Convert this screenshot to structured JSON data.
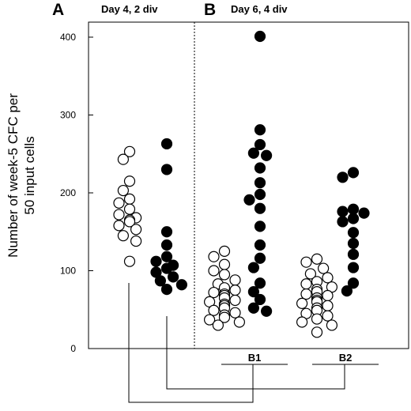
{
  "chart_data": {
    "type": "scatter",
    "panels": [
      {
        "letter": "A",
        "title": "Day 4, 2 div"
      },
      {
        "letter": "B",
        "title": "Day 6, 4 div"
      }
    ],
    "ylabel_line1": "Number of week-5 CFC per",
    "ylabel_line2": "50  input cells",
    "ylim": [
      0,
      420
    ],
    "yticks": [
      0,
      100,
      200,
      300,
      400
    ],
    "groups": [
      "B1",
      "B2"
    ],
    "series": [
      {
        "fill": "#ffffff",
        "panel": "A",
        "values": [
          253,
          243,
          215,
          203,
          192,
          187,
          179,
          172,
          168,
          165,
          163,
          158,
          153,
          145,
          138,
          112
        ]
      },
      {
        "fill": "#000000",
        "panel": "A",
        "values": [
          263,
          230,
          150,
          133,
          118,
          112,
          107,
          103,
          98,
          92,
          87,
          82,
          76
        ]
      },
      {
        "fill": "#ffffff",
        "panel": "B1",
        "values": [
          125,
          118,
          108,
          100,
          95,
          88,
          83,
          78,
          75,
          72,
          70,
          68,
          65,
          62,
          60,
          57,
          55,
          52,
          49,
          46,
          43,
          40,
          37,
          34,
          30
        ]
      },
      {
        "fill": "#000000",
        "panel": "B1",
        "values": [
          401,
          281,
          262,
          251,
          248,
          232,
          213,
          198,
          191,
          180,
          157,
          133,
          116,
          104,
          84,
          73,
          63,
          52,
          48
        ]
      },
      {
        "fill": "#ffffff",
        "panel": "B2",
        "values": [
          115,
          111,
          103,
          96,
          91,
          86,
          83,
          79,
          76,
          73,
          70,
          68,
          65,
          62,
          60,
          58,
          55,
          52,
          49,
          45,
          42,
          38,
          34,
          30,
          21
        ]
      },
      {
        "fill": "#000000",
        "panel": "B2",
        "values": [
          226,
          220,
          179,
          176,
          174,
          167,
          163,
          149,
          135,
          121,
          104,
          84,
          74
        ]
      }
    ],
    "comparisons": [
      {
        "from": "A-open",
        "to": "B1"
      },
      {
        "from": "A-filled",
        "to": "B2"
      }
    ]
  }
}
